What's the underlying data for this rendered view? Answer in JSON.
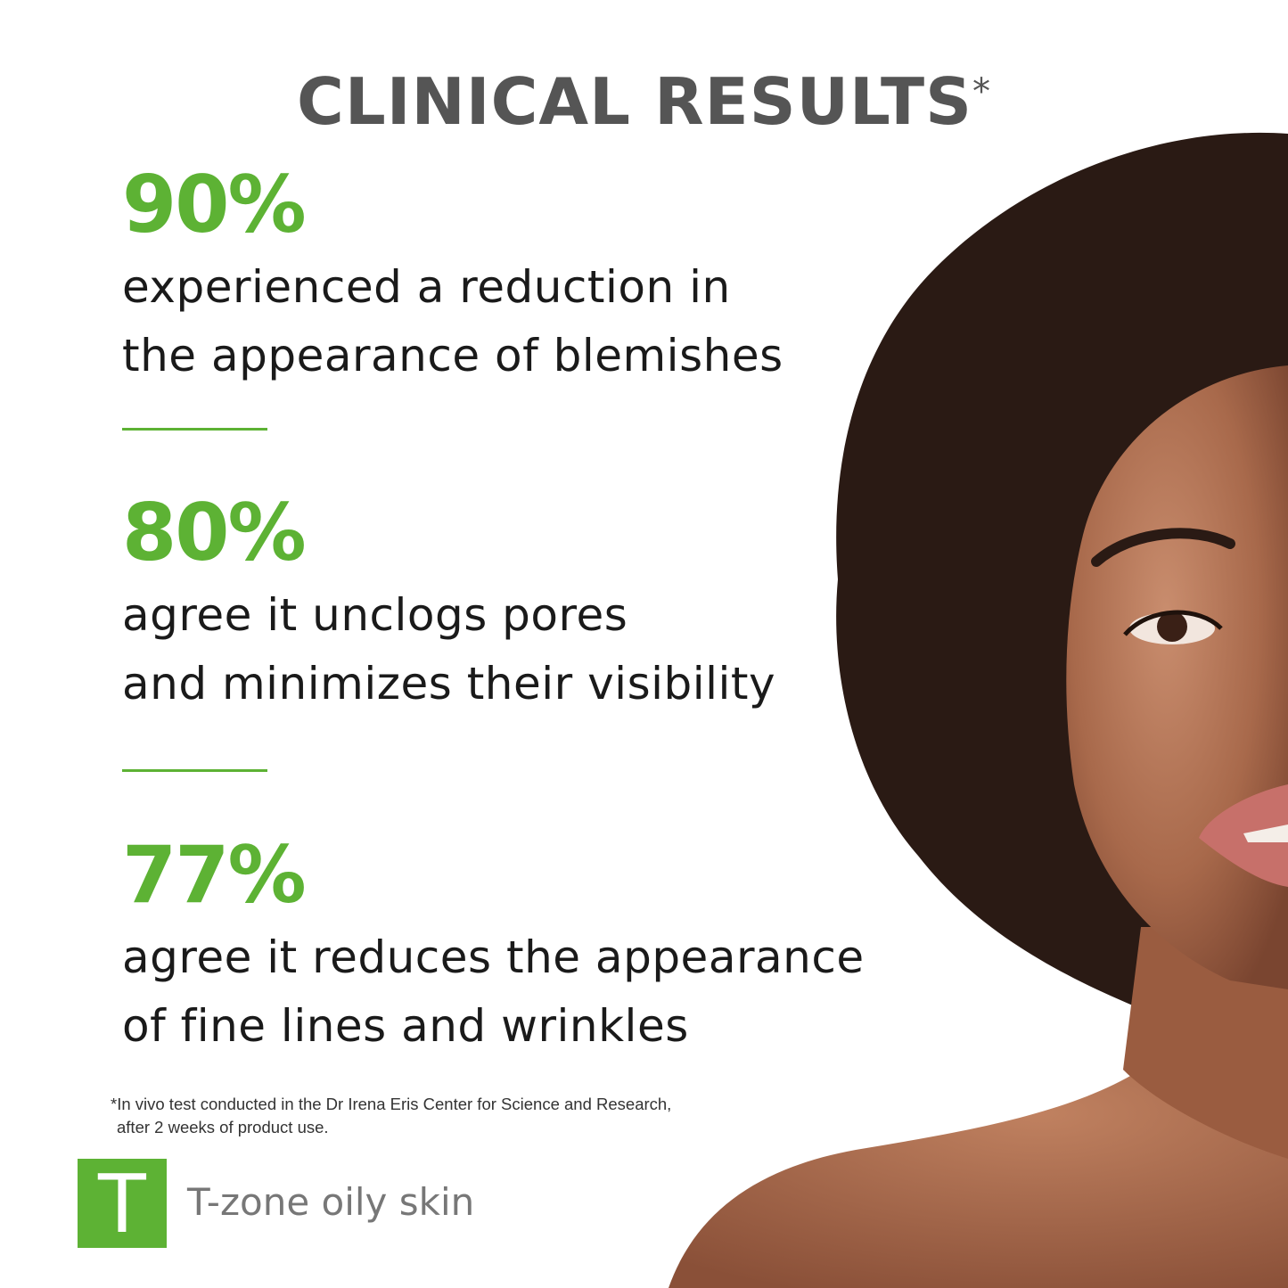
{
  "title": "CLINICAL RESULTS",
  "title_mark": "*",
  "stats": [
    {
      "value": "90%",
      "lines": [
        "experienced a reduction in",
        "the appearance of blemishes"
      ]
    },
    {
      "value": "80%",
      "lines": [
        "agree it unclogs pores",
        "and minimizes their visibility"
      ]
    },
    {
      "value": "77%",
      "lines": [
        "agree it reduces the appearance",
        "of fine lines and wrinkles"
      ]
    }
  ],
  "footnote": [
    "*In vivo test conducted in the Dr Irena Eris Center for Science and Research,",
    "after 2 weeks of product use."
  ],
  "badge": {
    "letter": "T",
    "label": "T-zone oily skin"
  },
  "colors": {
    "accent": "#5db234",
    "title": "#555555",
    "text": "#1a1a1a"
  }
}
